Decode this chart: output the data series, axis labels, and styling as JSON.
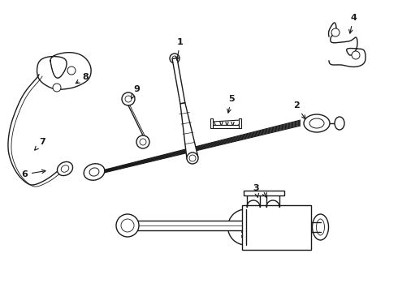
{
  "bg_color": "#ffffff",
  "line_color": "#1a1a1a",
  "lw": 1.0,
  "figsize": [
    4.9,
    3.6
  ],
  "dpi": 100
}
